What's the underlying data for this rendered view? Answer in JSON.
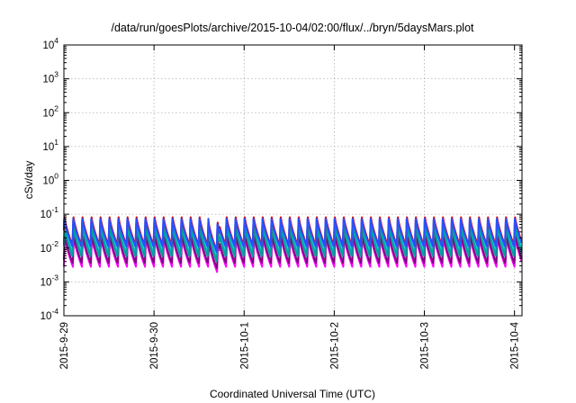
{
  "chart_data": {
    "type": "line",
    "title": "/data/run/goesPlots/archive/2015-10-04/02:00/flux/../bryn/5daysMars.plot",
    "xlabel": "Coordinated Universal Time (UTC)",
    "ylabel": "cSv/day",
    "yscale": "log",
    "ylim": [
      0.0001,
      10000
    ],
    "xlim": [
      "2015-09-29 00:00",
      "2015-10-04 02:00"
    ],
    "grid": true,
    "legend": "none",
    "x_ticks": [
      {
        "label": "2015-9-29",
        "time": "2015-09-29 00:00"
      },
      {
        "label": "2015-9-30",
        "time": "2015-09-30 00:00"
      },
      {
        "label": "2015-10-1",
        "time": "2015-10-01 00:00"
      },
      {
        "label": "2015-10-2",
        "time": "2015-10-02 00:00"
      },
      {
        "label": "2015-10-3",
        "time": "2015-10-03 00:00"
      },
      {
        "label": "2015-10-4",
        "time": "2015-10-04 00:00"
      }
    ],
    "y_ticks": [
      {
        "exp": "-4",
        "value": 0.0001
      },
      {
        "exp": "-3",
        "value": 0.001
      },
      {
        "exp": "-2",
        "value": 0.01
      },
      {
        "exp": "-1",
        "value": 0.1
      },
      {
        "exp": "0",
        "value": 1
      },
      {
        "exp": "1",
        "value": 10
      },
      {
        "exp": "2",
        "value": 100
      },
      {
        "exp": "3",
        "value": 1000
      },
      {
        "exp": "4",
        "value": 10000
      }
    ],
    "cycle_hours": 2.4,
    "series": [
      {
        "color": "#ff00ff",
        "peak": 0.022,
        "trough": 0.0028
      },
      {
        "color": "#800080",
        "peak": 0.026,
        "trough": 0.0035
      },
      {
        "color": "#00c8c8",
        "peak": 0.05,
        "trough": 0.007
      },
      {
        "color": "#00a0a0",
        "peak": 0.045,
        "trough": 0.0055
      },
      {
        "color": "#e00000",
        "peak": 0.09,
        "trough": 0.012
      },
      {
        "color": "#2850ff",
        "peak": 0.08,
        "trough": 0.011
      }
    ]
  }
}
